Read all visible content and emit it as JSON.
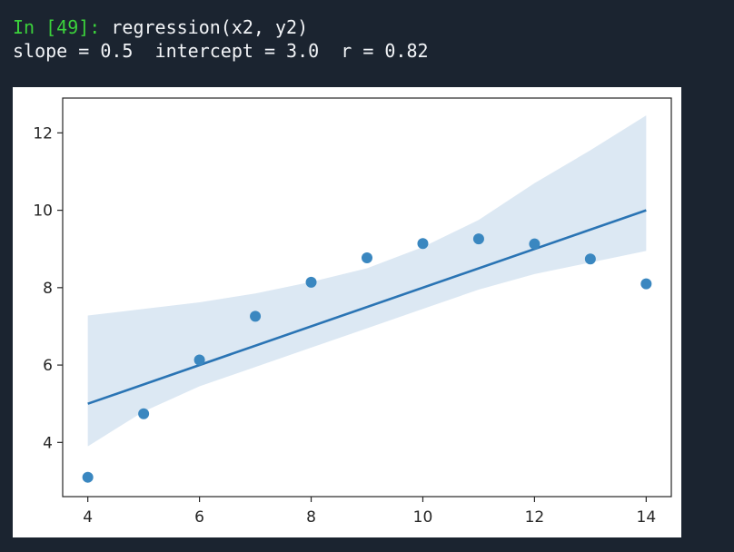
{
  "cell": {
    "prompt": "In [49]:",
    "code": "regression(x2, y2)",
    "output": "slope = 0.5  intercept = 3.0  r = 0.82"
  },
  "chart_data": {
    "type": "scatter",
    "title": "",
    "xlabel": "",
    "ylabel": "",
    "xlim": [
      3.55,
      14.45
    ],
    "ylim": [
      2.6,
      12.9
    ],
    "xticks": [
      4,
      6,
      8,
      10,
      12,
      14
    ],
    "yticks": [
      4,
      6,
      8,
      10,
      12
    ],
    "grid": false,
    "series": [
      {
        "kind": "scatter",
        "color": "#3a87c0",
        "x": [
          4,
          5,
          6,
          7,
          8,
          9,
          10,
          11,
          12,
          13,
          14
        ],
        "y": [
          3.1,
          4.74,
          6.13,
          7.26,
          8.14,
          8.77,
          9.14,
          9.26,
          9.13,
          8.74,
          8.1
        ]
      },
      {
        "kind": "line",
        "color": "#2a74b4",
        "x": [
          4,
          14
        ],
        "y": [
          5.0,
          10.0
        ]
      },
      {
        "kind": "band",
        "color": "#dce8f3",
        "x": [
          4,
          5,
          6,
          7,
          8,
          9,
          10,
          11,
          12,
          13,
          14
        ],
        "upper": [
          7.28,
          7.45,
          7.62,
          7.85,
          8.15,
          8.5,
          9.05,
          9.75,
          10.7,
          11.55,
          12.45
        ],
        "lower": [
          3.9,
          4.8,
          5.45,
          5.95,
          6.45,
          6.95,
          7.45,
          7.95,
          8.35,
          8.65,
          8.95
        ]
      }
    ]
  }
}
